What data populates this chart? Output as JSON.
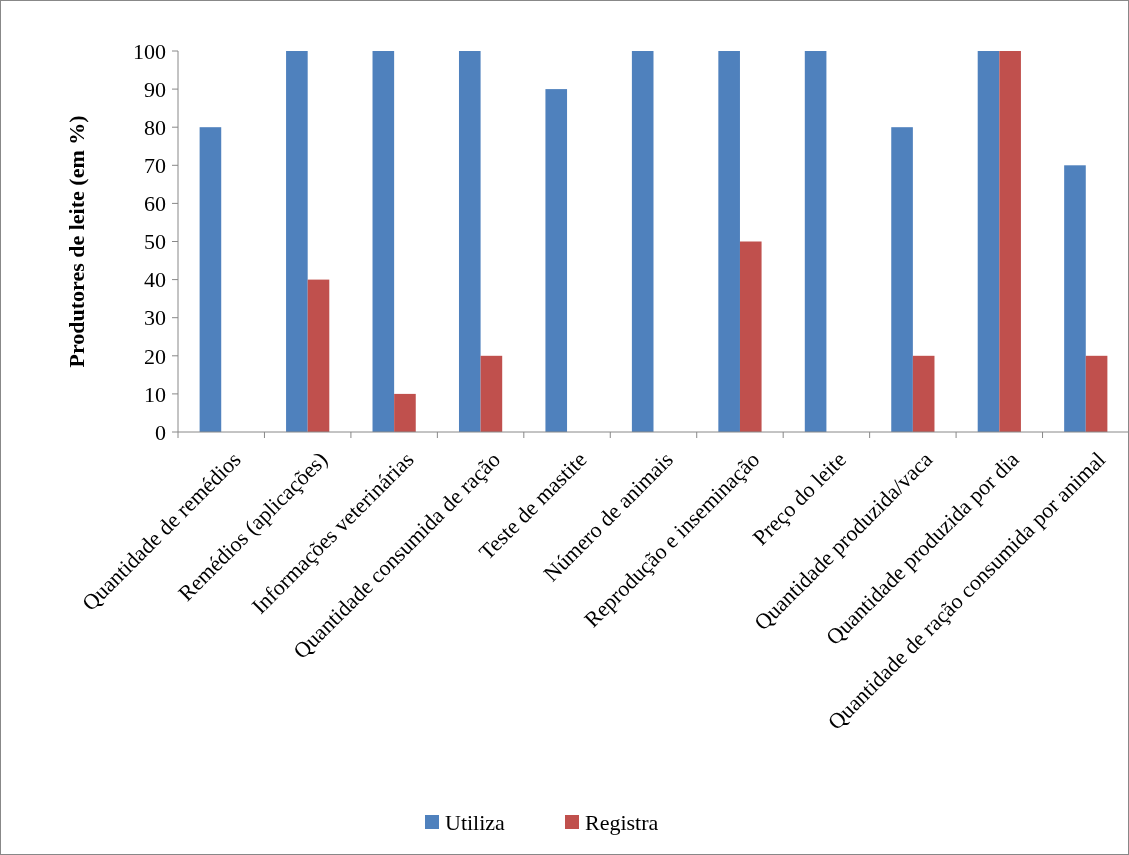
{
  "chart_data": {
    "type": "bar",
    "ylabel": "Produtores de leite (em %)",
    "categories": [
      "Quantidade de remédios",
      "Remédios (aplicações)",
      "Informações veterinárias",
      "Quantidade consumida de ração",
      "Teste de mastite",
      "Número de animais",
      "Reprodução e inseminação",
      "Preço do leite",
      "Quantidade produzida/vaca",
      "Quantidade produzida por dia",
      "Quantidade de ração consumida por animal"
    ],
    "series": [
      {
        "name": "Utiliza",
        "color": "#4f81bd",
        "values": [
          80,
          100,
          100,
          100,
          90,
          100,
          100,
          100,
          80,
          100,
          70
        ]
      },
      {
        "name": "Registra",
        "color": "#c0504d",
        "values": [
          0,
          40,
          10,
          20,
          0,
          0,
          50,
          0,
          20,
          100,
          20
        ]
      }
    ],
    "ylim": [
      0,
      100
    ],
    "yticks": [
      0,
      10,
      20,
      30,
      40,
      50,
      60,
      70,
      80,
      90,
      100
    ],
    "legend": "bottom",
    "grid": false
  }
}
